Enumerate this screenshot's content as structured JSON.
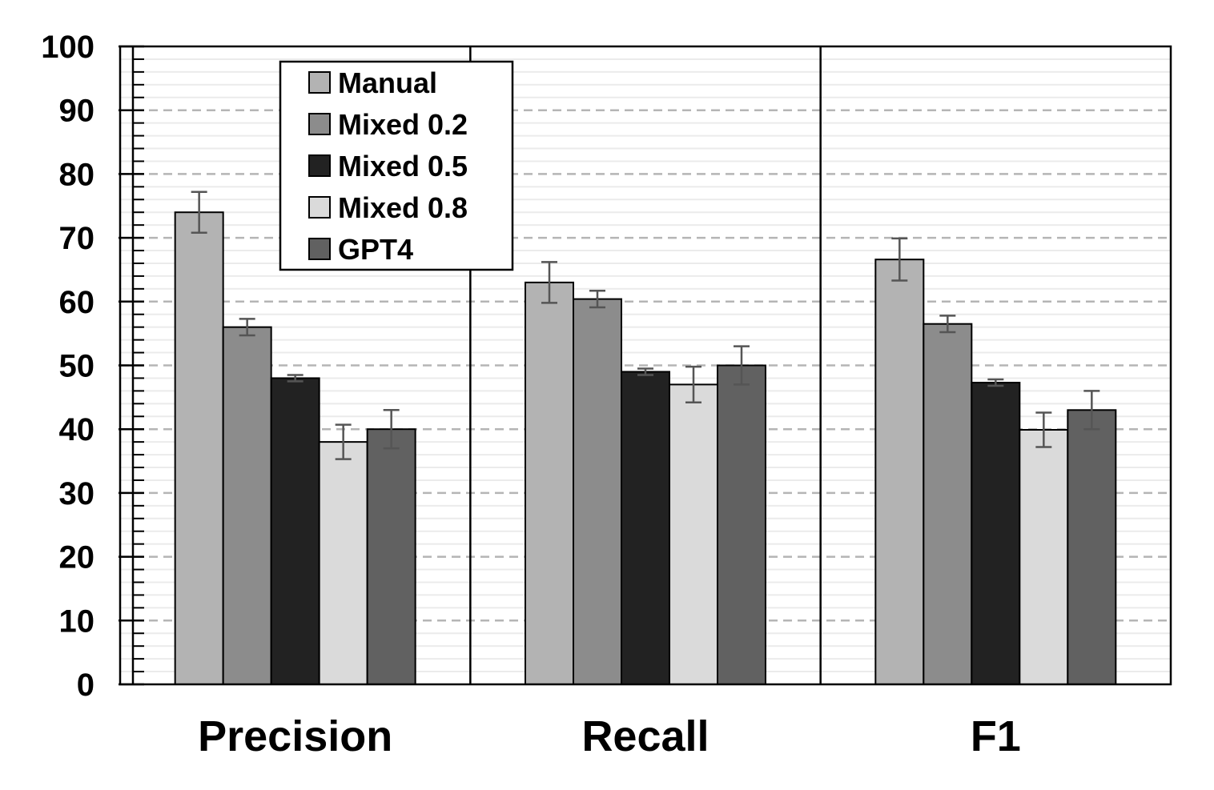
{
  "chart_data": {
    "type": "bar",
    "categories": [
      "Precision",
      "Recall",
      "F1"
    ],
    "series": [
      {
        "name": "Manual",
        "color": "#b3b3b3",
        "values": [
          74,
          63,
          66.6
        ],
        "errors": [
          3.2,
          3.2,
          3.3
        ]
      },
      {
        "name": "Mixed 0.2",
        "color": "#8c8c8c",
        "values": [
          56,
          60.4,
          56.5
        ],
        "errors": [
          1.3,
          1.3,
          1.3
        ]
      },
      {
        "name": "Mixed 0.5",
        "color": "#222222",
        "values": [
          48,
          49,
          47.3
        ],
        "errors": [
          0.5,
          0.5,
          0.5
        ]
      },
      {
        "name": "Mixed 0.8",
        "color": "#dadada",
        "values": [
          38,
          47,
          39.9
        ],
        "errors": [
          2.7,
          2.8,
          2.7
        ]
      },
      {
        "name": "GPT4",
        "color": "#616161",
        "values": [
          40,
          50,
          43
        ],
        "errors": [
          3,
          3,
          3
        ]
      }
    ],
    "yticks": [
      "0",
      "10",
      "20",
      "30",
      "40",
      "50",
      "60",
      "70",
      "80",
      "90",
      "100"
    ],
    "ylim": [
      0,
      100
    ],
    "grid": true,
    "legend_position": "top-left"
  }
}
